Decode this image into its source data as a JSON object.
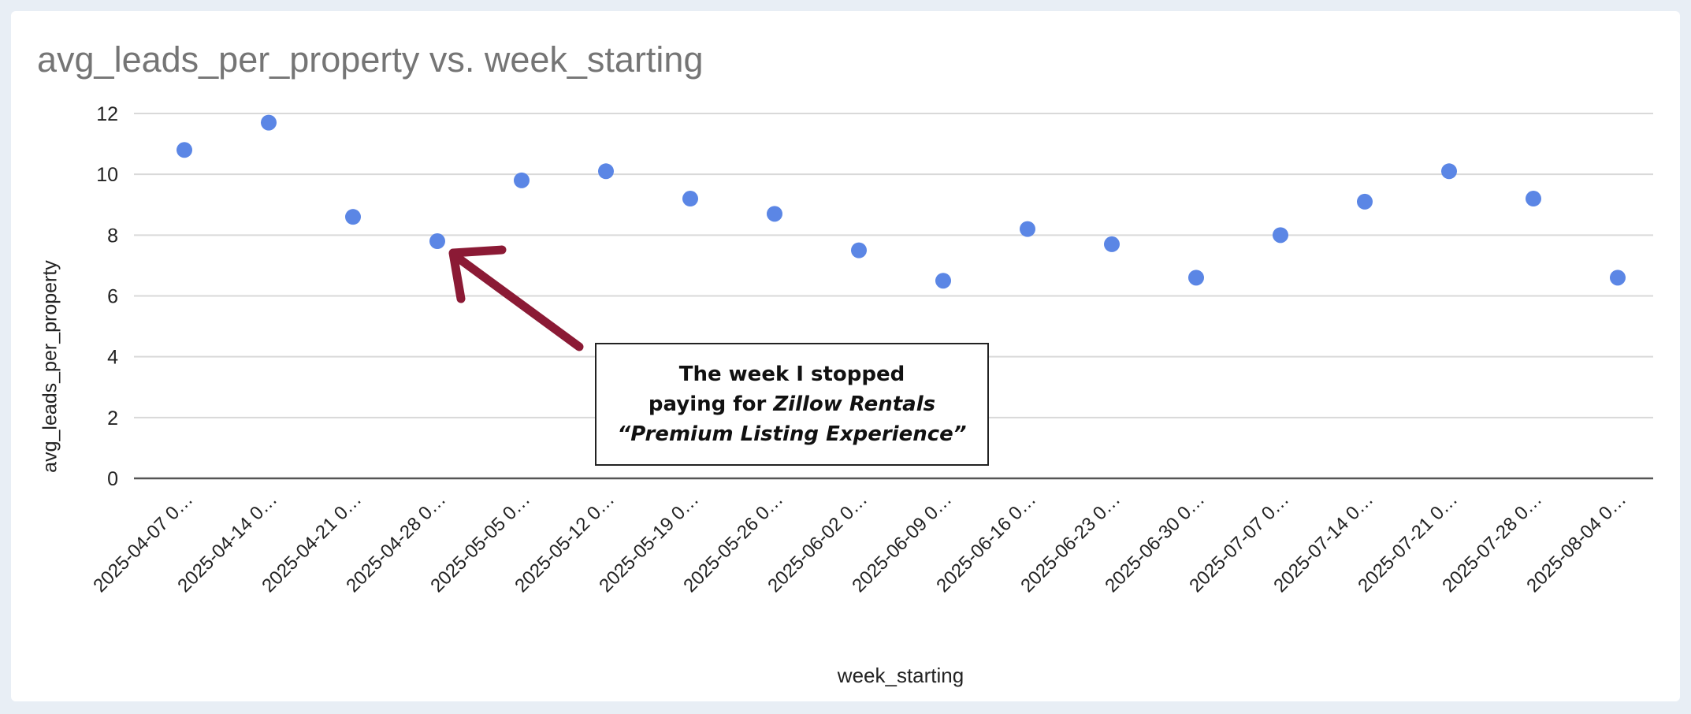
{
  "chart_data": {
    "type": "scatter",
    "title": "avg_leads_per_property vs. week_starting",
    "xlabel": "week_starting",
    "ylabel": "avg_leads_per_property",
    "ylim": [
      0,
      12
    ],
    "yticks": [
      0,
      2,
      4,
      6,
      8,
      10,
      12
    ],
    "grid": true,
    "categories": [
      "2025-04-07 0…",
      "2025-04-14 0…",
      "2025-04-21 0…",
      "2025-04-28 0…",
      "2025-05-05 0…",
      "2025-05-12 0…",
      "2025-05-19 0…",
      "2025-05-26 0…",
      "2025-06-02 0…",
      "2025-06-09 0…",
      "2025-06-16 0…",
      "2025-06-23 0…",
      "2025-06-30 0…",
      "2025-07-07 0…",
      "2025-07-14 0…",
      "2025-07-21 0…",
      "2025-07-28 0…",
      "2025-08-04 0…"
    ],
    "series": [
      {
        "name": "avg_leads_per_property",
        "values": [
          10.8,
          11.7,
          8.6,
          7.8,
          9.8,
          10.1,
          9.2,
          8.7,
          7.5,
          6.5,
          8.2,
          7.7,
          6.6,
          8.0,
          9.1,
          10.1,
          9.2,
          6.6
        ]
      }
    ],
    "annotation": {
      "target_category": "2025-04-28 0…",
      "line1": "The week I stopped",
      "line2_prefix": "paying for ",
      "line2_italic": "Zillow Rentals",
      "line3_italic": "“Premium Listing Experience”"
    }
  },
  "colors": {
    "point": "#5b86e5",
    "arrow": "#8b1a35",
    "grid": "#d9d9d9",
    "axis": "#555555"
  }
}
